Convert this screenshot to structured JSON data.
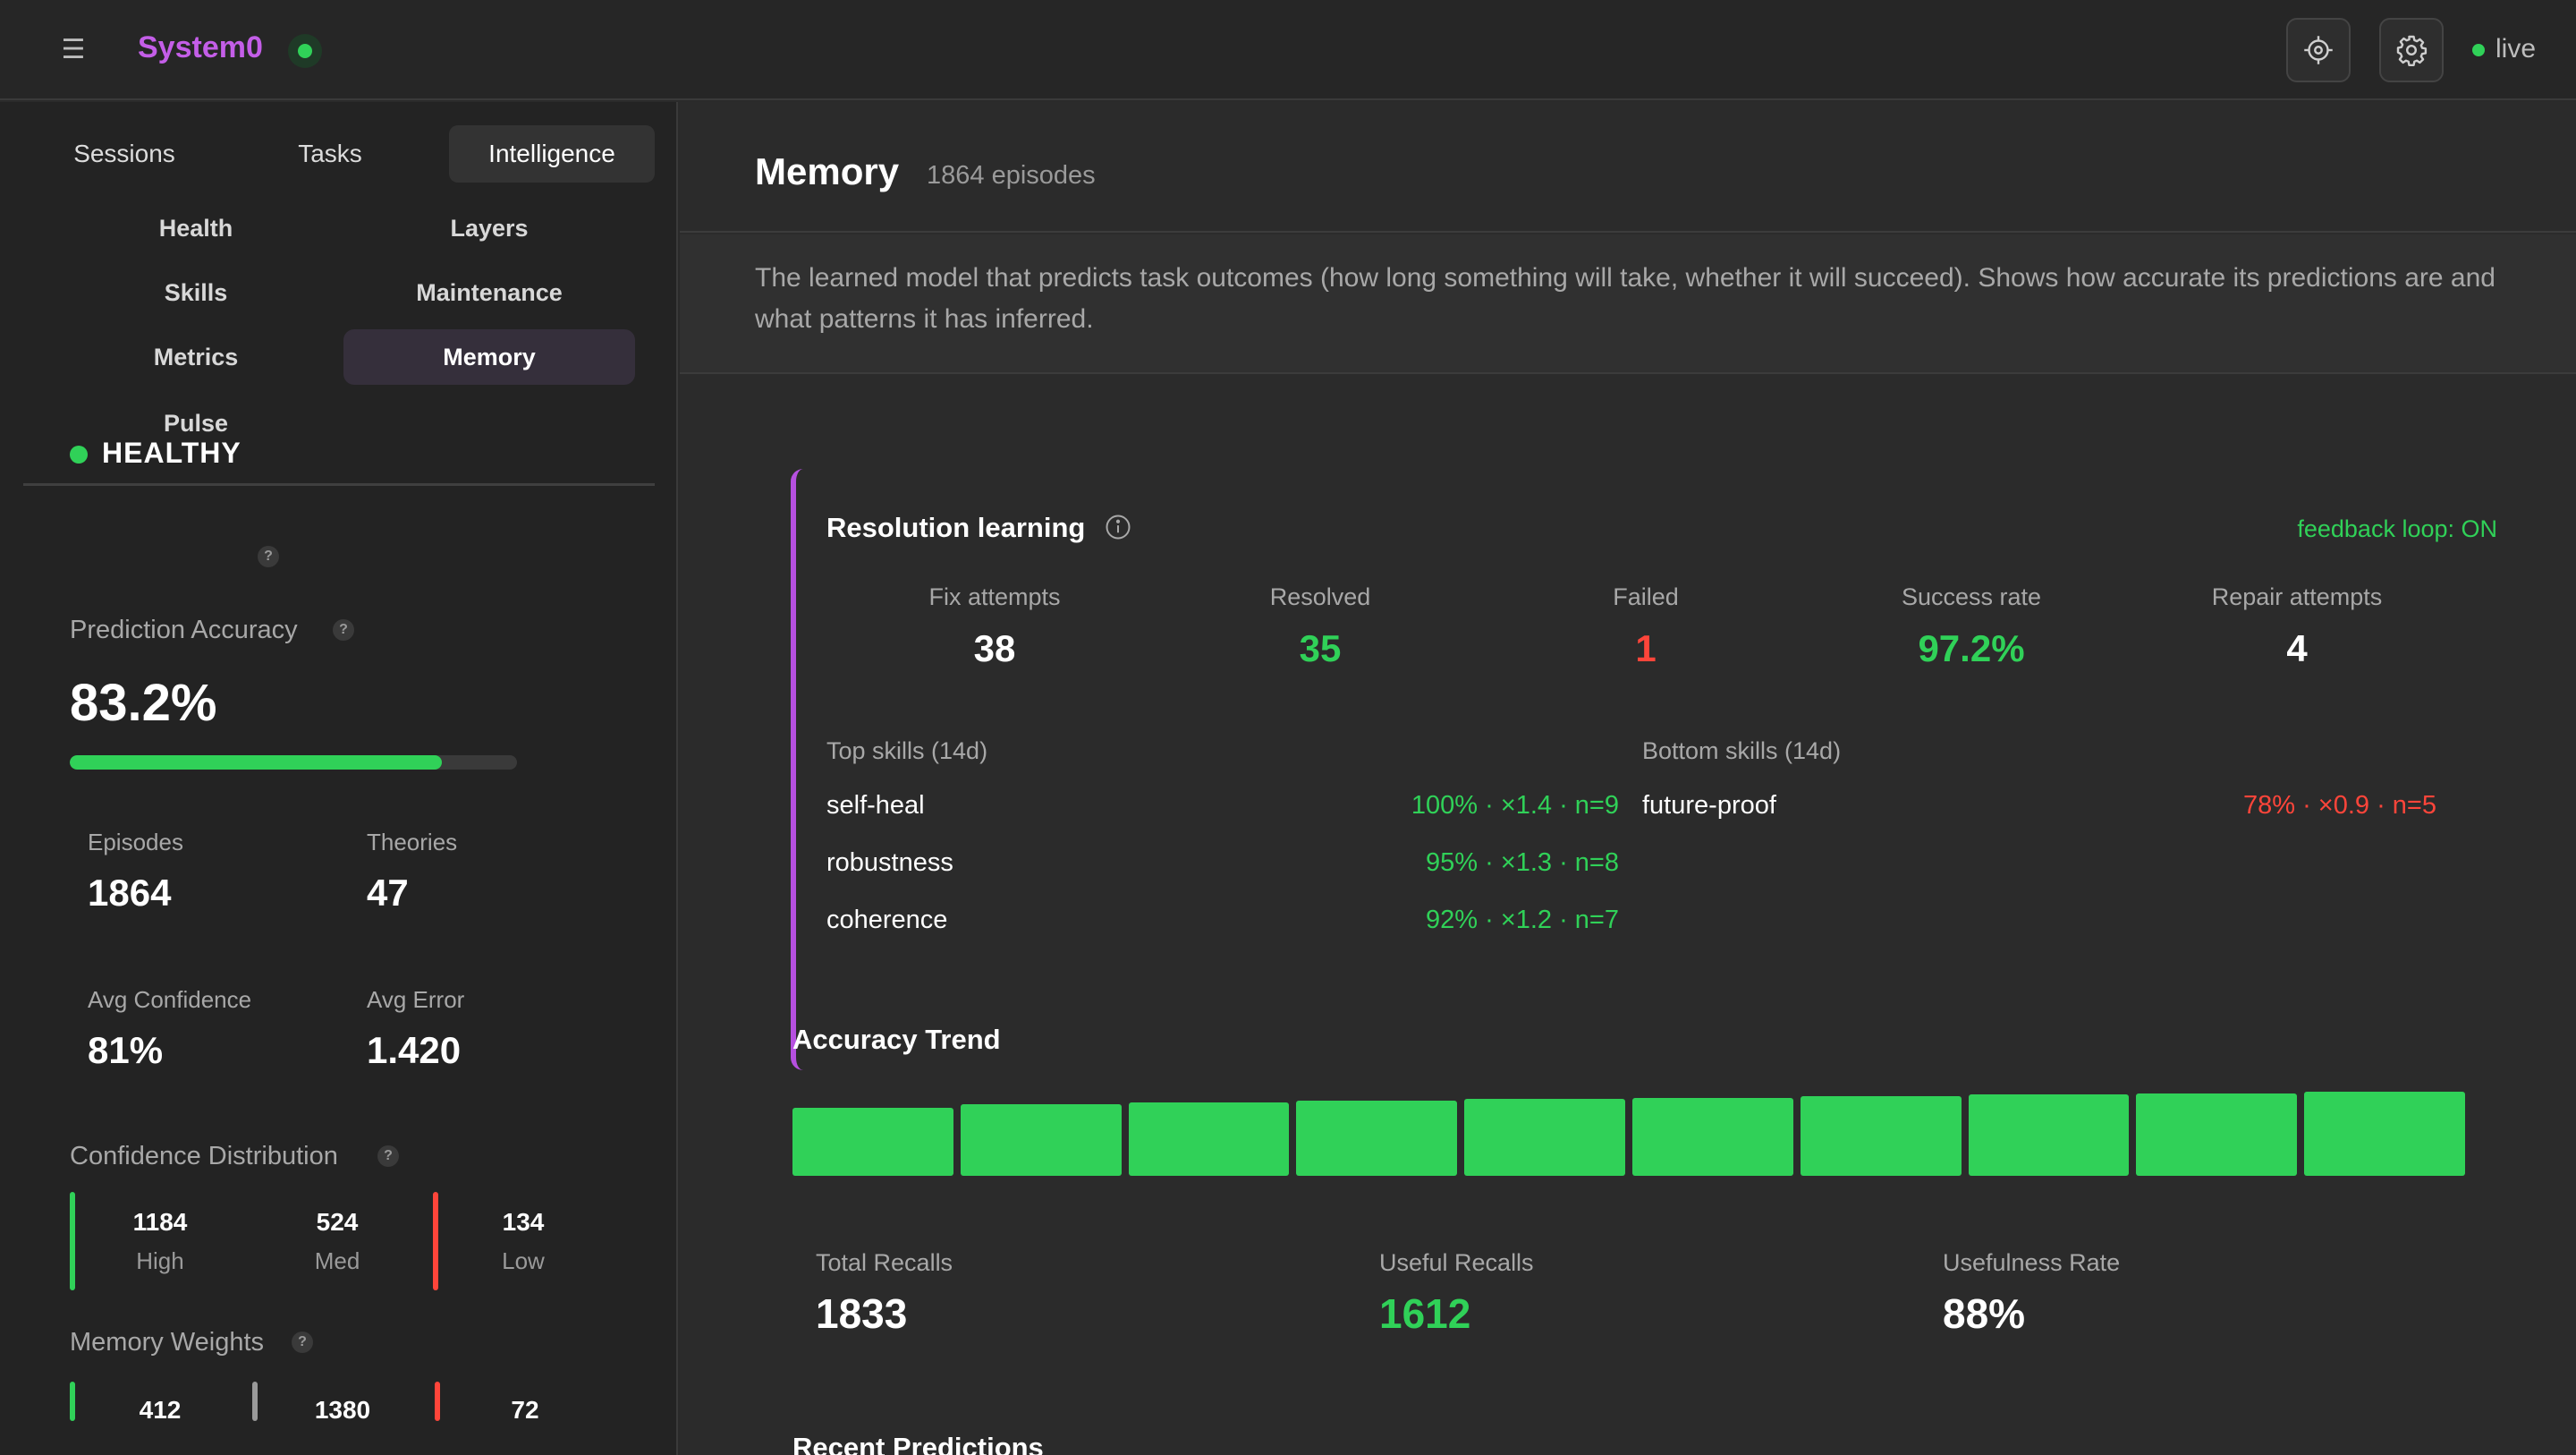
{
  "header": {
    "menu_icon": "hamburger-menu-icon",
    "app_name": "System0",
    "status_color": "#30d158",
    "target_icon": "crosshair-icon",
    "settings_icon": "gear-icon",
    "live_label": "live"
  },
  "sidebar": {
    "tabs": [
      {
        "label": "Sessions"
      },
      {
        "label": "Tasks"
      },
      {
        "label": "Intelligence",
        "active": true
      }
    ],
    "subnav": [
      {
        "label": "Health"
      },
      {
        "label": "Layers"
      },
      {
        "label": "Skills"
      },
      {
        "label": "Maintenance"
      },
      {
        "label": "Metrics"
      },
      {
        "label": "Memory",
        "active": true
      },
      {
        "label": "Pulse"
      }
    ],
    "health_status": "HEALTHY",
    "help_glyph": "?",
    "prediction_accuracy_label": "Prediction Accuracy",
    "prediction_accuracy_value": "83.2%",
    "prediction_accuracy_fraction": 0.832,
    "stats": [
      {
        "label": "Episodes",
        "value": "1864"
      },
      {
        "label": "Theories",
        "value": "47"
      },
      {
        "label": "Avg Confidence",
        "value": "81%"
      },
      {
        "label": "Avg Error",
        "value": "1.420"
      }
    ],
    "confidence_distribution_label": "Confidence Distribution",
    "confidence_distribution": [
      {
        "value": "1184",
        "label": "High",
        "color": "#30d158"
      },
      {
        "value": "524",
        "label": "Med",
        "color": "#888888"
      },
      {
        "value": "134",
        "label": "Low",
        "color": "#ff453a"
      }
    ],
    "memory_weights_label": "Memory Weights",
    "memory_weights": [
      {
        "value": "412",
        "color": "#30d158"
      },
      {
        "value": "1380",
        "color": "#9a9a9a"
      },
      {
        "value": "72",
        "color": "#ff453a"
      }
    ]
  },
  "main": {
    "title": "Memory",
    "subtitle": "1864 episodes",
    "description": "The learned model that predicts task outcomes (how long something will take, whether it will succeed). Shows how accurate its predictions are and what patterns it has inferred.",
    "resolution": {
      "title": "Resolution learning",
      "info_icon": "info-icon",
      "feedback": "feedback loop: ON",
      "accent_color": "#b650e0",
      "kpis": [
        {
          "label": "Fix attempts",
          "value": "38",
          "color": "#ffffff"
        },
        {
          "label": "Resolved",
          "value": "35",
          "color": "#30d158"
        },
        {
          "label": "Failed",
          "value": "1",
          "color": "#ff453a"
        },
        {
          "label": "Success rate",
          "value": "97.2%",
          "color": "#30d158"
        },
        {
          "label": "Repair attempts",
          "value": "4",
          "color": "#ffffff"
        }
      ],
      "top_skills_label": "Top skills (14d)",
      "top_skills": [
        {
          "name": "self-heal",
          "stat": "100% · ×1.4 · n=9"
        },
        {
          "name": "robustness",
          "stat": "95% · ×1.3 · n=8"
        },
        {
          "name": "coherence",
          "stat": "92% · ×1.2 · n=7"
        }
      ],
      "bottom_skills_label": "Bottom skills (14d)",
      "bottom_skills": [
        {
          "name": "future-proof",
          "stat": "78% · ×0.9 · n=5"
        }
      ]
    },
    "accuracy_trend_title": "Accuracy Trend",
    "accuracy_trend_levels": [
      0.74,
      0.77,
      0.79,
      0.81,
      0.83,
      0.84,
      0.86,
      0.88,
      0.89,
      0.91
    ],
    "recalls": [
      {
        "label": "Total Recalls",
        "value": "1833",
        "color": "#ffffff"
      },
      {
        "label": "Useful Recalls",
        "value": "1612",
        "color": "#30d158"
      },
      {
        "label": "Usefulness Rate",
        "value": "88%",
        "color": "#ffffff"
      }
    ],
    "recent_predictions_title": "Recent Predictions"
  }
}
